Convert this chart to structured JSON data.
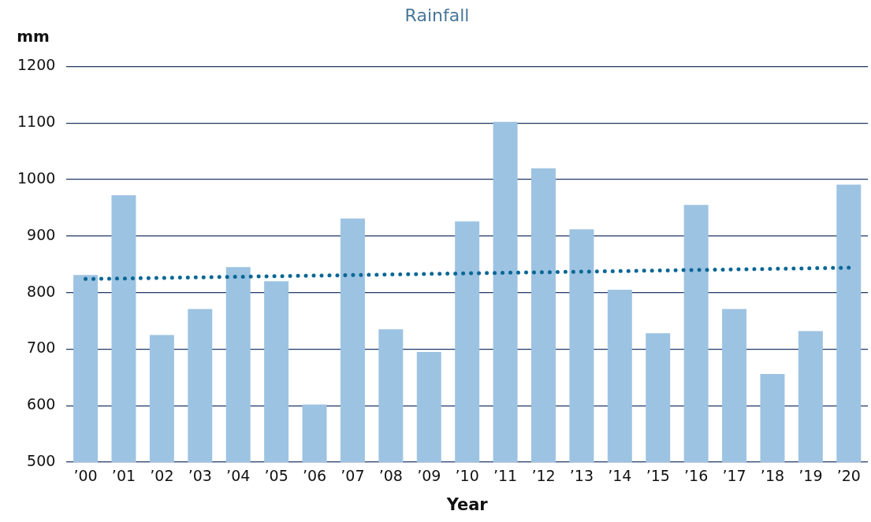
{
  "chart_data": {
    "type": "bar",
    "title": "Rainfall",
    "xlabel": "Year",
    "ylabel": "mm",
    "categories": [
      "’00",
      "’01",
      "’02",
      "’03",
      "’04",
      "’05",
      "’06",
      "’07",
      "’08",
      "’09",
      "’10",
      "’11",
      "’12",
      "’13",
      "’14",
      "’15",
      "’16",
      "’17",
      "’18",
      "’19",
      "’20"
    ],
    "series": [
      {
        "color": "#9dc3e2",
        "values": [
          831,
          972,
          725,
          771,
          845,
          820,
          602,
          931,
          735,
          695,
          926,
          1102,
          1020,
          912,
          805,
          728,
          955,
          771,
          656,
          732,
          991
        ]
      },
      {
        "type": "line",
        "color": "#0a6796",
        "line_style": "dotted",
        "marker": "none",
        "values": [
          824,
          825,
          826,
          827,
          828,
          829,
          830,
          831,
          832,
          833,
          834,
          835,
          836,
          837,
          838,
          839,
          840,
          841,
          842,
          843,
          844
        ]
      }
    ],
    "ylim": [
      500,
      1200
    ],
    "yticks": [
      500,
      600,
      700,
      800,
      900,
      1000,
      1100,
      1200
    ],
    "grid": "y",
    "legend": false
  }
}
